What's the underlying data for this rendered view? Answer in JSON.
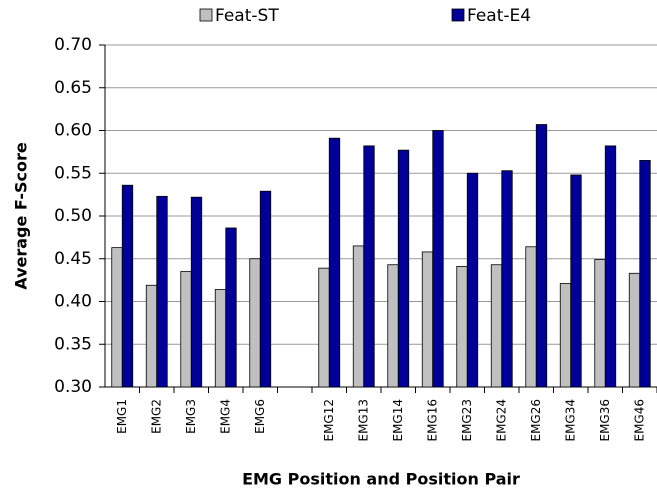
{
  "chart_data": {
    "type": "bar",
    "y_label": "Average F-Score",
    "x_label": "EMG Position and Position Pair",
    "categories": [
      "EMG1",
      "EMG2",
      "EMG3",
      "EMG4",
      "EMG6",
      null,
      "EMG12",
      "EMG13",
      "EMG14",
      "EMG16",
      "EMG23",
      "EMG24",
      "EMG26",
      "EMG34",
      "EMG36",
      "EMG46"
    ],
    "series": [
      {
        "name": "Feat-ST",
        "color": "#c0c0c0",
        "values": [
          0.463,
          0.419,
          0.435,
          0.414,
          0.45,
          null,
          0.439,
          0.465,
          0.443,
          0.458,
          0.441,
          0.443,
          0.464,
          0.421,
          0.449,
          0.433
        ]
      },
      {
        "name": "Feat-E4",
        "color": "#000099",
        "values": [
          0.536,
          0.523,
          0.522,
          0.486,
          0.529,
          null,
          0.591,
          0.582,
          0.577,
          0.6,
          0.55,
          0.553,
          0.607,
          0.548,
          0.582,
          0.565
        ]
      }
    ],
    "ylim": [
      0.3,
      0.7
    ],
    "yticks": [
      {
        "value": 0.3,
        "label": "0.30"
      },
      {
        "value": 0.35,
        "label": "0.35"
      },
      {
        "value": 0.4,
        "label": "0.40"
      },
      {
        "value": 0.45,
        "label": "0.45"
      },
      {
        "value": 0.5,
        "label": "0.50"
      },
      {
        "value": 0.55,
        "label": "0.55"
      },
      {
        "value": 0.6,
        "label": "0.60"
      },
      {
        "value": 0.65,
        "label": "0.65"
      },
      {
        "value": 0.7,
        "label": "0.70"
      }
    ],
    "grid": true,
    "legend": "top"
  }
}
